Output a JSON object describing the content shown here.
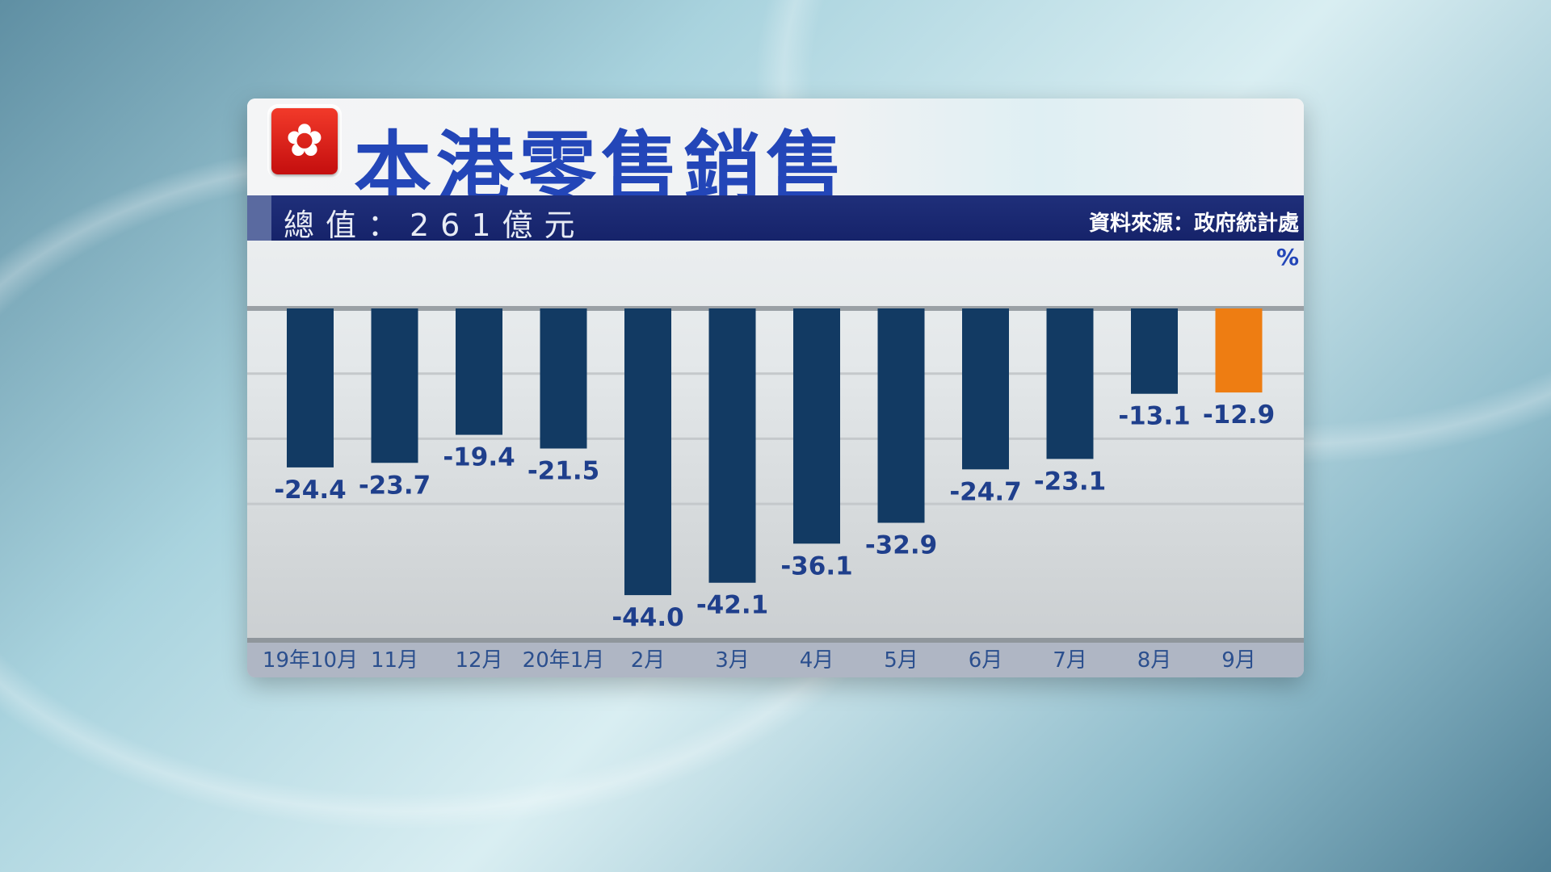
{
  "header": {
    "title": "本港零售銷售",
    "total": "總值：261億元",
    "source": "資料來源：政府統計處",
    "unit": "%"
  },
  "colors": {
    "bar": "#123a63",
    "highlight": "#ee7d12",
    "label": "#1f3f8c",
    "title": "#2346b8"
  },
  "chart_data": {
    "type": "bar",
    "title": "本港零售銷售",
    "ylabel": "%",
    "categories": [
      "19年10月",
      "11月",
      "12月",
      "20年1月",
      "2月",
      "3月",
      "4月",
      "5月",
      "6月",
      "7月",
      "8月",
      "9月"
    ],
    "values": [
      -24.4,
      -23.7,
      -19.4,
      -21.5,
      -44.0,
      -42.1,
      -36.1,
      -32.9,
      -24.7,
      -23.1,
      -13.1,
      -12.9
    ],
    "data_labels": [
      "-24.4",
      "-23.7",
      "-19.4",
      "-21.5",
      "-44.0",
      "-42.1",
      "-36.1",
      "-32.9",
      "-24.7",
      "-23.1",
      "-13.1",
      "-12.9"
    ],
    "highlight_index": 11,
    "ylim": [
      -44,
      0
    ],
    "grid": true
  }
}
